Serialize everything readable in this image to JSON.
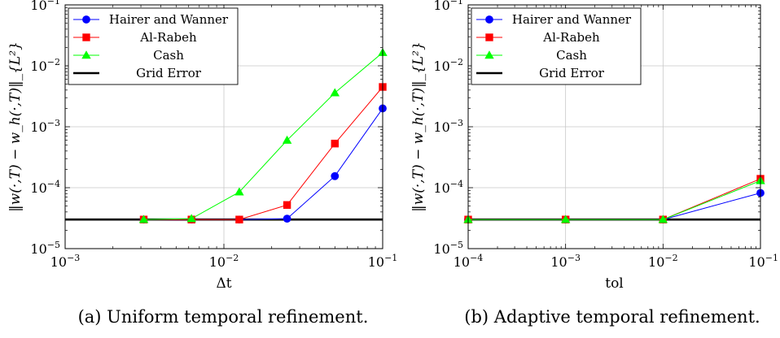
{
  "chart_data": [
    {
      "type": "line",
      "x_scale": "log",
      "y_scale": "log",
      "xlim": [
        0.001,
        0.1
      ],
      "ylim": [
        1e-05,
        0.1
      ],
      "xlabel": "Δt",
      "ylabel": "‖w(·,T) − w_h(·,T)‖_{L²}",
      "x_ticks": [
        {
          "value": 0.001,
          "base": "10",
          "exp": "−3"
        },
        {
          "value": 0.01,
          "base": "10",
          "exp": "−2"
        },
        {
          "value": 0.1,
          "base": "10",
          "exp": "−1"
        }
      ],
      "y_ticks": [
        {
          "value": 1e-05,
          "base": "10",
          "exp": "−5"
        },
        {
          "value": 0.0001,
          "base": "10",
          "exp": "−4"
        },
        {
          "value": 0.001,
          "base": "10",
          "exp": "−3"
        },
        {
          "value": 0.01,
          "base": "10",
          "exp": "−2"
        },
        {
          "value": 0.1,
          "base": "10",
          "exp": "−1"
        }
      ],
      "grid": true,
      "legend_position": "top-left",
      "caption": "(a) Uniform temporal refinement.",
      "series": [
        {
          "name": "Hairer and Wanner",
          "color": "#0000ff",
          "marker": "circle",
          "x": [
            0.003125,
            0.00625,
            0.0125,
            0.025,
            0.05,
            0.1
          ],
          "y": [
            3e-05,
            3e-05,
            3e-05,
            3.1e-05,
            0.000155,
            0.002
          ]
        },
        {
          "name": "Al-Rabeh",
          "color": "#ff0000",
          "marker": "square",
          "x": [
            0.003125,
            0.00625,
            0.0125,
            0.025,
            0.05,
            0.1
          ],
          "y": [
            3e-05,
            3e-05,
            3e-05,
            5.2e-05,
            0.00053,
            0.0045
          ]
        },
        {
          "name": "Cash",
          "color": "#00ff00",
          "marker": "triangle",
          "x": [
            0.003125,
            0.00625,
            0.0125,
            0.025,
            0.05,
            0.1
          ],
          "y": [
            3e-05,
            3.1e-05,
            8.5e-05,
            0.0006,
            0.0036,
            0.0165
          ]
        },
        {
          "name": "Grid Error",
          "color": "#000000",
          "marker": "none",
          "x": [
            0.001,
            0.1
          ],
          "y": [
            3e-05,
            3e-05
          ]
        }
      ]
    },
    {
      "type": "line",
      "x_scale": "log",
      "y_scale": "log",
      "xlim": [
        0.0001,
        0.1
      ],
      "ylim": [
        1e-05,
        0.1
      ],
      "xlabel": "tol",
      "ylabel": "‖w(·,T) − w_h(·,T)‖_{L²}",
      "x_ticks": [
        {
          "value": 0.0001,
          "base": "10",
          "exp": "−4"
        },
        {
          "value": 0.001,
          "base": "10",
          "exp": "−3"
        },
        {
          "value": 0.01,
          "base": "10",
          "exp": "−2"
        },
        {
          "value": 0.1,
          "base": "10",
          "exp": "−1"
        }
      ],
      "y_ticks": [
        {
          "value": 1e-05,
          "base": "10",
          "exp": "−5"
        },
        {
          "value": 0.0001,
          "base": "10",
          "exp": "−4"
        },
        {
          "value": 0.001,
          "base": "10",
          "exp": "−3"
        },
        {
          "value": 0.01,
          "base": "10",
          "exp": "−2"
        },
        {
          "value": 0.1,
          "base": "10",
          "exp": "−1"
        }
      ],
      "grid": true,
      "legend_position": "top-left",
      "caption": "(b) Adaptive temporal refinement.",
      "series": [
        {
          "name": "Hairer and Wanner",
          "color": "#0000ff",
          "marker": "circle",
          "x": [
            0.0001,
            0.001,
            0.01,
            0.1
          ],
          "y": [
            3e-05,
            3e-05,
            3e-05,
            8.2e-05
          ]
        },
        {
          "name": "Al-Rabeh",
          "color": "#ff0000",
          "marker": "square",
          "x": [
            0.0001,
            0.001,
            0.01,
            0.1
          ],
          "y": [
            3e-05,
            3e-05,
            3e-05,
            0.00014
          ]
        },
        {
          "name": "Cash",
          "color": "#00ff00",
          "marker": "triangle",
          "x": [
            0.0001,
            0.001,
            0.01,
            0.1
          ],
          "y": [
            3e-05,
            3e-05,
            3e-05,
            0.00013
          ]
        },
        {
          "name": "Grid Error",
          "color": "#000000",
          "marker": "none",
          "x": [
            0.0001,
            0.1
          ],
          "y": [
            3e-05,
            3e-05
          ]
        }
      ]
    }
  ]
}
